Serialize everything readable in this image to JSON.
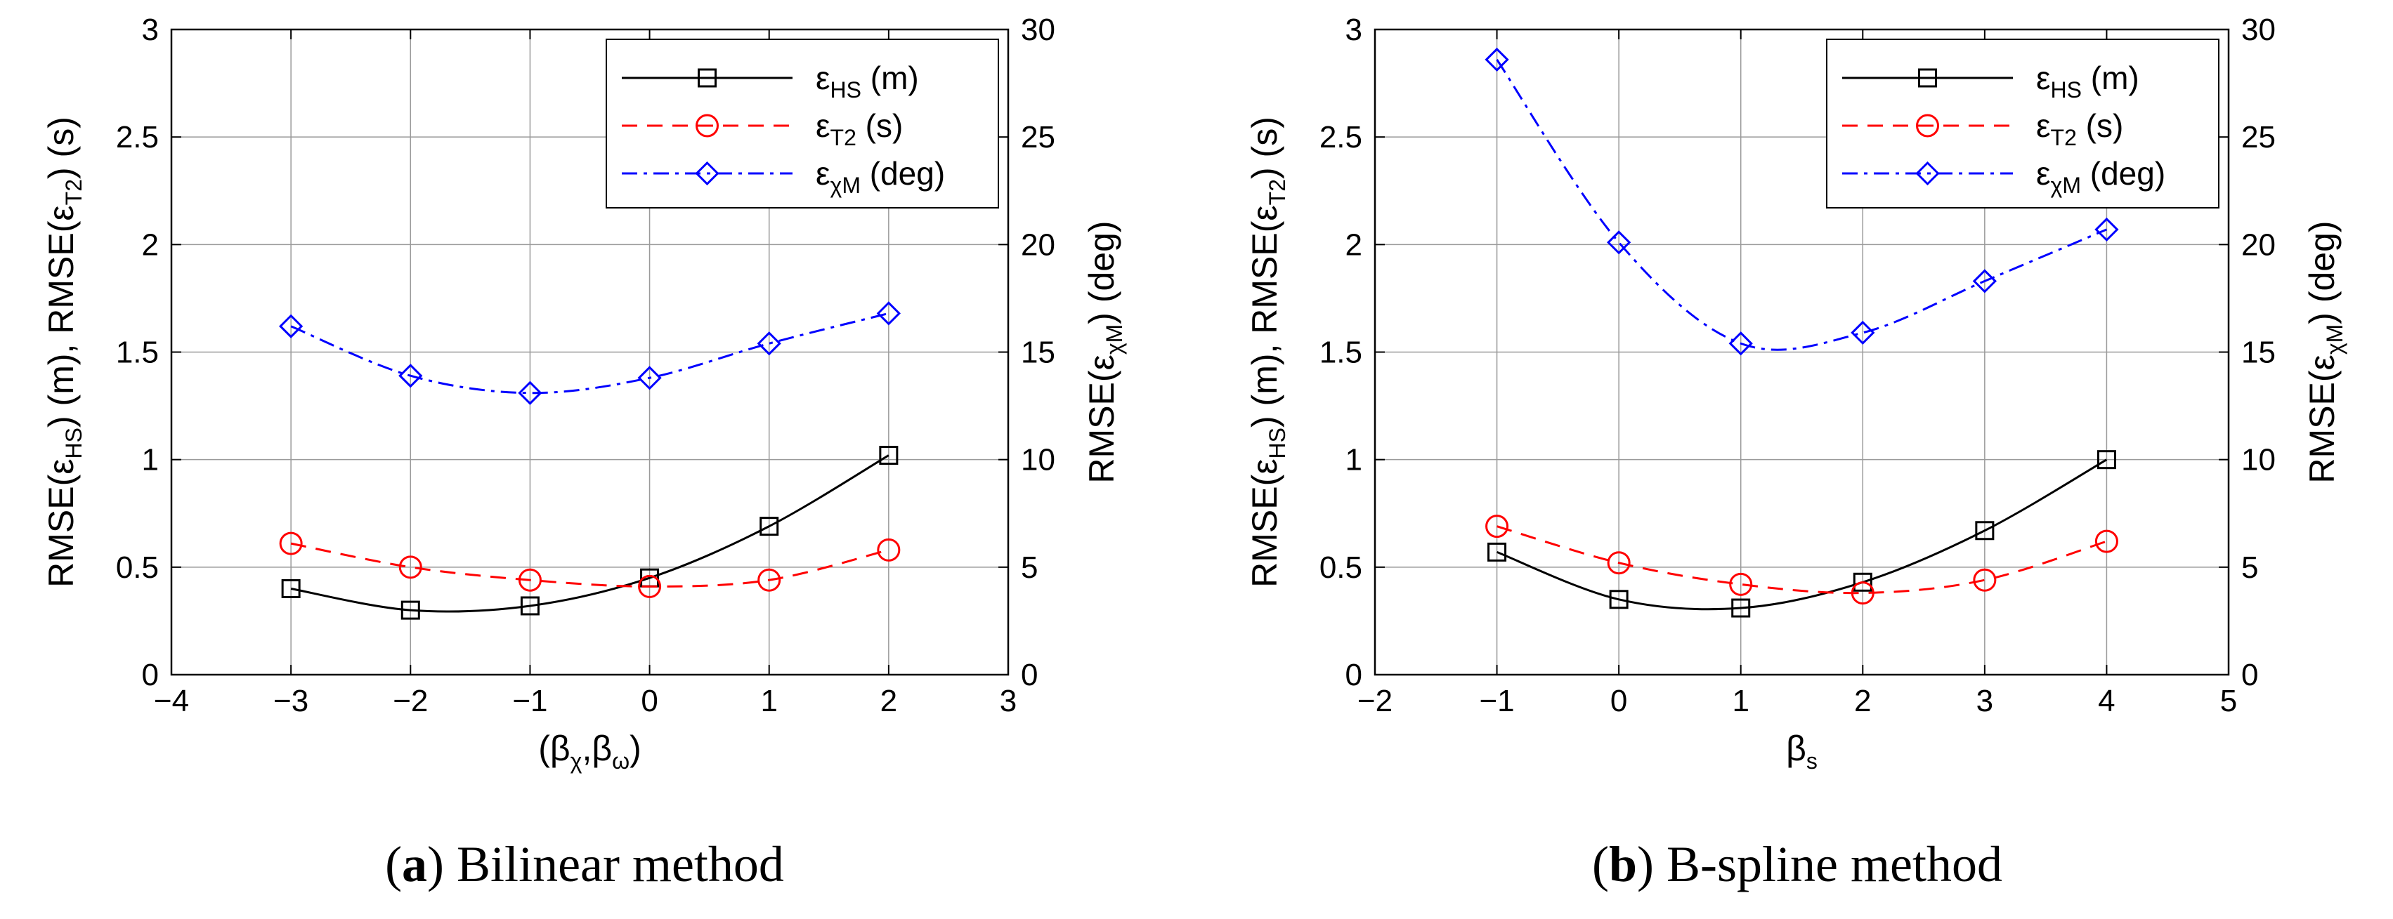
{
  "chart_data": [
    {
      "type": "line",
      "panel": "a",
      "caption_letter": "a",
      "caption_text": "Bilinear method",
      "xlabel": "(βχ,βω)",
      "ylabel_left": "RMSE(εHS) (m), RMSE(εT2) (s)",
      "ylabel_right": "RMSE(εχM) (deg)",
      "xlim": [
        -4,
        3
      ],
      "ylim_left": [
        0,
        3
      ],
      "ylim_right": [
        0,
        30
      ],
      "xticks": [
        "−4",
        "−3",
        "−2",
        "−1",
        "0",
        "1",
        "2",
        "3"
      ],
      "yticks_left": [
        "0",
        "0.5",
        "1",
        "1.5",
        "2",
        "2.5",
        "3"
      ],
      "yticks_right": [
        "0",
        "5",
        "10",
        "15",
        "20",
        "25",
        "30"
      ],
      "grid": true,
      "legend_position": "top-right",
      "x": [
        -3,
        -2,
        -1,
        0,
        1,
        2
      ],
      "series": [
        {
          "name": "εHS (m)",
          "label_main": "ε",
          "label_sub": "HS",
          "label_unit": " (m)",
          "axis": "left",
          "color": "#000000",
          "marker": "square",
          "dash": "solid",
          "values": [
            0.4,
            0.3,
            0.32,
            0.45,
            0.69,
            1.02
          ]
        },
        {
          "name": "εT2 (s)",
          "label_main": "ε",
          "label_sub": "T2",
          "label_unit": " (s)",
          "axis": "left",
          "color": "#ff0000",
          "marker": "circle",
          "dash": "dashed",
          "values": [
            0.61,
            0.5,
            0.44,
            0.41,
            0.44,
            0.58
          ]
        },
        {
          "name": "εχM (deg)",
          "label_main": "ε",
          "label_sub": "χM",
          "label_unit": " (deg)",
          "axis": "right",
          "color": "#0000ff",
          "marker": "diamond",
          "dash": "dashdot",
          "values": [
            16.2,
            13.9,
            13.1,
            13.8,
            15.4,
            16.8
          ]
        }
      ]
    },
    {
      "type": "line",
      "panel": "b",
      "caption_letter": "b",
      "caption_text": "B-spline method",
      "xlabel": "βs",
      "ylabel_left": "RMSE(εHS) (m), RMSE(εT2) (s)",
      "ylabel_right": "RMSE(εχM) (deg)",
      "xlim": [
        -2,
        5
      ],
      "ylim_left": [
        0,
        3
      ],
      "ylim_right": [
        0,
        30
      ],
      "xticks": [
        "−2",
        "−1",
        "0",
        "1",
        "2",
        "3",
        "4",
        "5"
      ],
      "yticks_left": [
        "0",
        "0.5",
        "1",
        "1.5",
        "2",
        "2.5",
        "3"
      ],
      "yticks_right": [
        "0",
        "5",
        "10",
        "15",
        "20",
        "25",
        "30"
      ],
      "grid": true,
      "legend_position": "top-right",
      "x": [
        -1,
        0,
        1,
        2,
        3,
        4
      ],
      "series": [
        {
          "name": "εHS (m)",
          "label_main": "ε",
          "label_sub": "HS",
          "label_unit": " (m)",
          "axis": "left",
          "color": "#000000",
          "marker": "square",
          "dash": "solid",
          "values": [
            0.57,
            0.35,
            0.31,
            0.43,
            0.67,
            1.0
          ]
        },
        {
          "name": "εT2 (s)",
          "label_main": "ε",
          "label_sub": "T2",
          "label_unit": " (s)",
          "axis": "left",
          "color": "#ff0000",
          "marker": "circle",
          "dash": "dashed",
          "values": [
            0.69,
            0.52,
            0.42,
            0.38,
            0.44,
            0.62
          ]
        },
        {
          "name": "εχM (deg)",
          "label_main": "ε",
          "label_sub": "χM",
          "label_unit": " (deg)",
          "axis": "right",
          "color": "#0000ff",
          "marker": "diamond",
          "dash": "dashdot",
          "values": [
            28.6,
            20.1,
            15.4,
            15.9,
            18.3,
            20.7
          ]
        }
      ]
    }
  ]
}
